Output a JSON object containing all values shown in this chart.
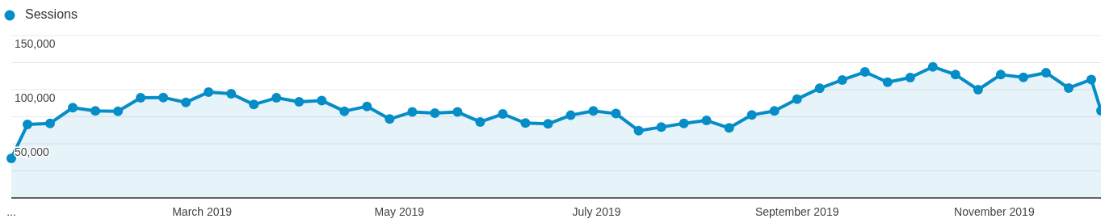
{
  "chart_data": {
    "type": "area",
    "legend": "top left",
    "grid": "y",
    "marker": "circle",
    "line_style": "solid",
    "x": [
      "2019-01-01",
      "2019-01-06",
      "2019-01-13",
      "2019-01-20",
      "2019-01-27",
      "2019-02-03",
      "2019-02-10",
      "2019-02-17",
      "2019-02-24",
      "2019-03-03",
      "2019-03-10",
      "2019-03-17",
      "2019-03-24",
      "2019-03-31",
      "2019-04-07",
      "2019-04-14",
      "2019-04-21",
      "2019-04-28",
      "2019-05-05",
      "2019-05-12",
      "2019-05-19",
      "2019-05-26",
      "2019-06-02",
      "2019-06-09",
      "2019-06-16",
      "2019-06-23",
      "2019-06-30",
      "2019-07-07",
      "2019-07-14",
      "2019-07-21",
      "2019-07-28",
      "2019-08-04",
      "2019-08-11",
      "2019-08-18",
      "2019-08-25",
      "2019-09-01",
      "2019-09-08",
      "2019-09-15",
      "2019-09-22",
      "2019-09-29",
      "2019-10-06",
      "2019-10-13",
      "2019-10-20",
      "2019-10-27",
      "2019-11-03",
      "2019-11-10",
      "2019-11-17",
      "2019-11-24",
      "2019-12-01",
      "2019-12-04"
    ],
    "series": [
      {
        "name": "Sessions",
        "color": "#058dc7",
        "values": [
          36600,
          67900,
          68900,
          83400,
          80400,
          80100,
          92500,
          92800,
          88300,
          97800,
          96300,
          86300,
          92500,
          88800,
          90000,
          80100,
          84600,
          72900,
          79400,
          78400,
          79400,
          70200,
          77600,
          69200,
          68400,
          76400,
          80400,
          77900,
          62200,
          65400,
          68900,
          71600,
          64700,
          76600,
          80400,
          91300,
          101300,
          109000,
          116400,
          106900,
          111200,
          121100,
          113900,
          100000,
          113900,
          111400,
          115700,
          101500,
          109400,
          80600
        ]
      }
    ],
    "xlim": [
      "2019-01-01",
      "2019-12-04"
    ],
    "xticks": [
      {
        "value": "2019-01-01",
        "label": "..."
      },
      {
        "value": "2019-03-01",
        "label": "March 2019"
      },
      {
        "value": "2019-05-01",
        "label": "May 2019"
      },
      {
        "value": "2019-07-01",
        "label": "July 2019"
      },
      {
        "value": "2019-09-01",
        "label": "September 2019"
      },
      {
        "value": "2019-11-01",
        "label": "November 2019"
      }
    ],
    "ylim": [
      0,
      150000
    ],
    "yticks": [
      {
        "value": 0,
        "label": null
      },
      {
        "value": 25000,
        "label": null
      },
      {
        "value": 50000,
        "label": "50,000"
      },
      {
        "value": 75000,
        "label": null
      },
      {
        "value": 100000,
        "label": "100,000"
      },
      {
        "value": 125000,
        "label": null
      },
      {
        "value": 150000,
        "label": "150,000"
      }
    ]
  }
}
